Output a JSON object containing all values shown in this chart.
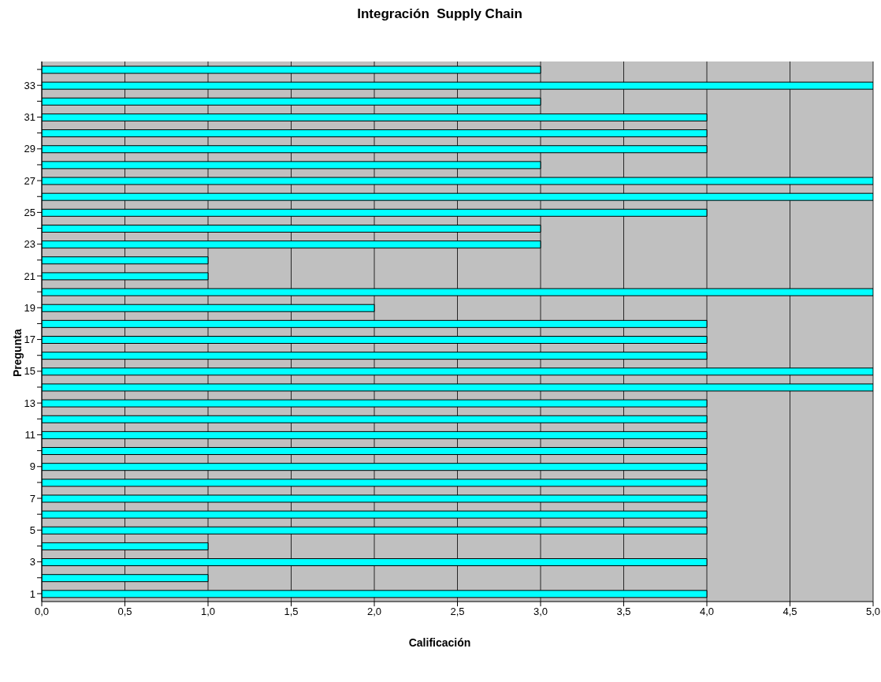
{
  "chart_data": {
    "type": "bar",
    "orientation": "horizontal",
    "title": "Integración  Supply Chain",
    "xlabel": "Calificación",
    "ylabel": "Pregunta",
    "categories": [
      null,
      "33",
      null,
      "31",
      null,
      "29",
      null,
      "27",
      null,
      "25",
      null,
      "23",
      null,
      "21",
      null,
      "19",
      null,
      "17",
      null,
      "15",
      null,
      "13",
      null,
      "11",
      null,
      "9",
      null,
      "7",
      null,
      "5",
      null,
      "3",
      null,
      "1"
    ],
    "values": [
      3,
      5,
      3,
      4,
      4,
      4,
      3,
      5,
      5,
      4,
      3,
      3,
      1,
      1,
      5,
      2,
      4,
      4,
      4,
      5,
      5,
      4,
      4,
      4,
      4,
      4,
      4,
      4,
      4,
      4,
      1,
      4,
      1,
      4
    ],
    "color": "#00ffff",
    "xlim": [
      0,
      5
    ],
    "xticks": [
      {
        "value": 0,
        "label": "0,0"
      },
      {
        "value": 0.5,
        "label": "0,5"
      },
      {
        "value": 1,
        "label": "1,0"
      },
      {
        "value": 1.5,
        "label": "1,5"
      },
      {
        "value": 2,
        "label": "2,0"
      },
      {
        "value": 2.5,
        "label": "2,5"
      },
      {
        "value": 3,
        "label": "3,0"
      },
      {
        "value": 3.5,
        "label": "3,5"
      },
      {
        "value": 4,
        "label": "4,0"
      },
      {
        "value": 4.5,
        "label": "4,5"
      },
      {
        "value": 5,
        "label": "5,0"
      }
    ],
    "grid": "x"
  }
}
